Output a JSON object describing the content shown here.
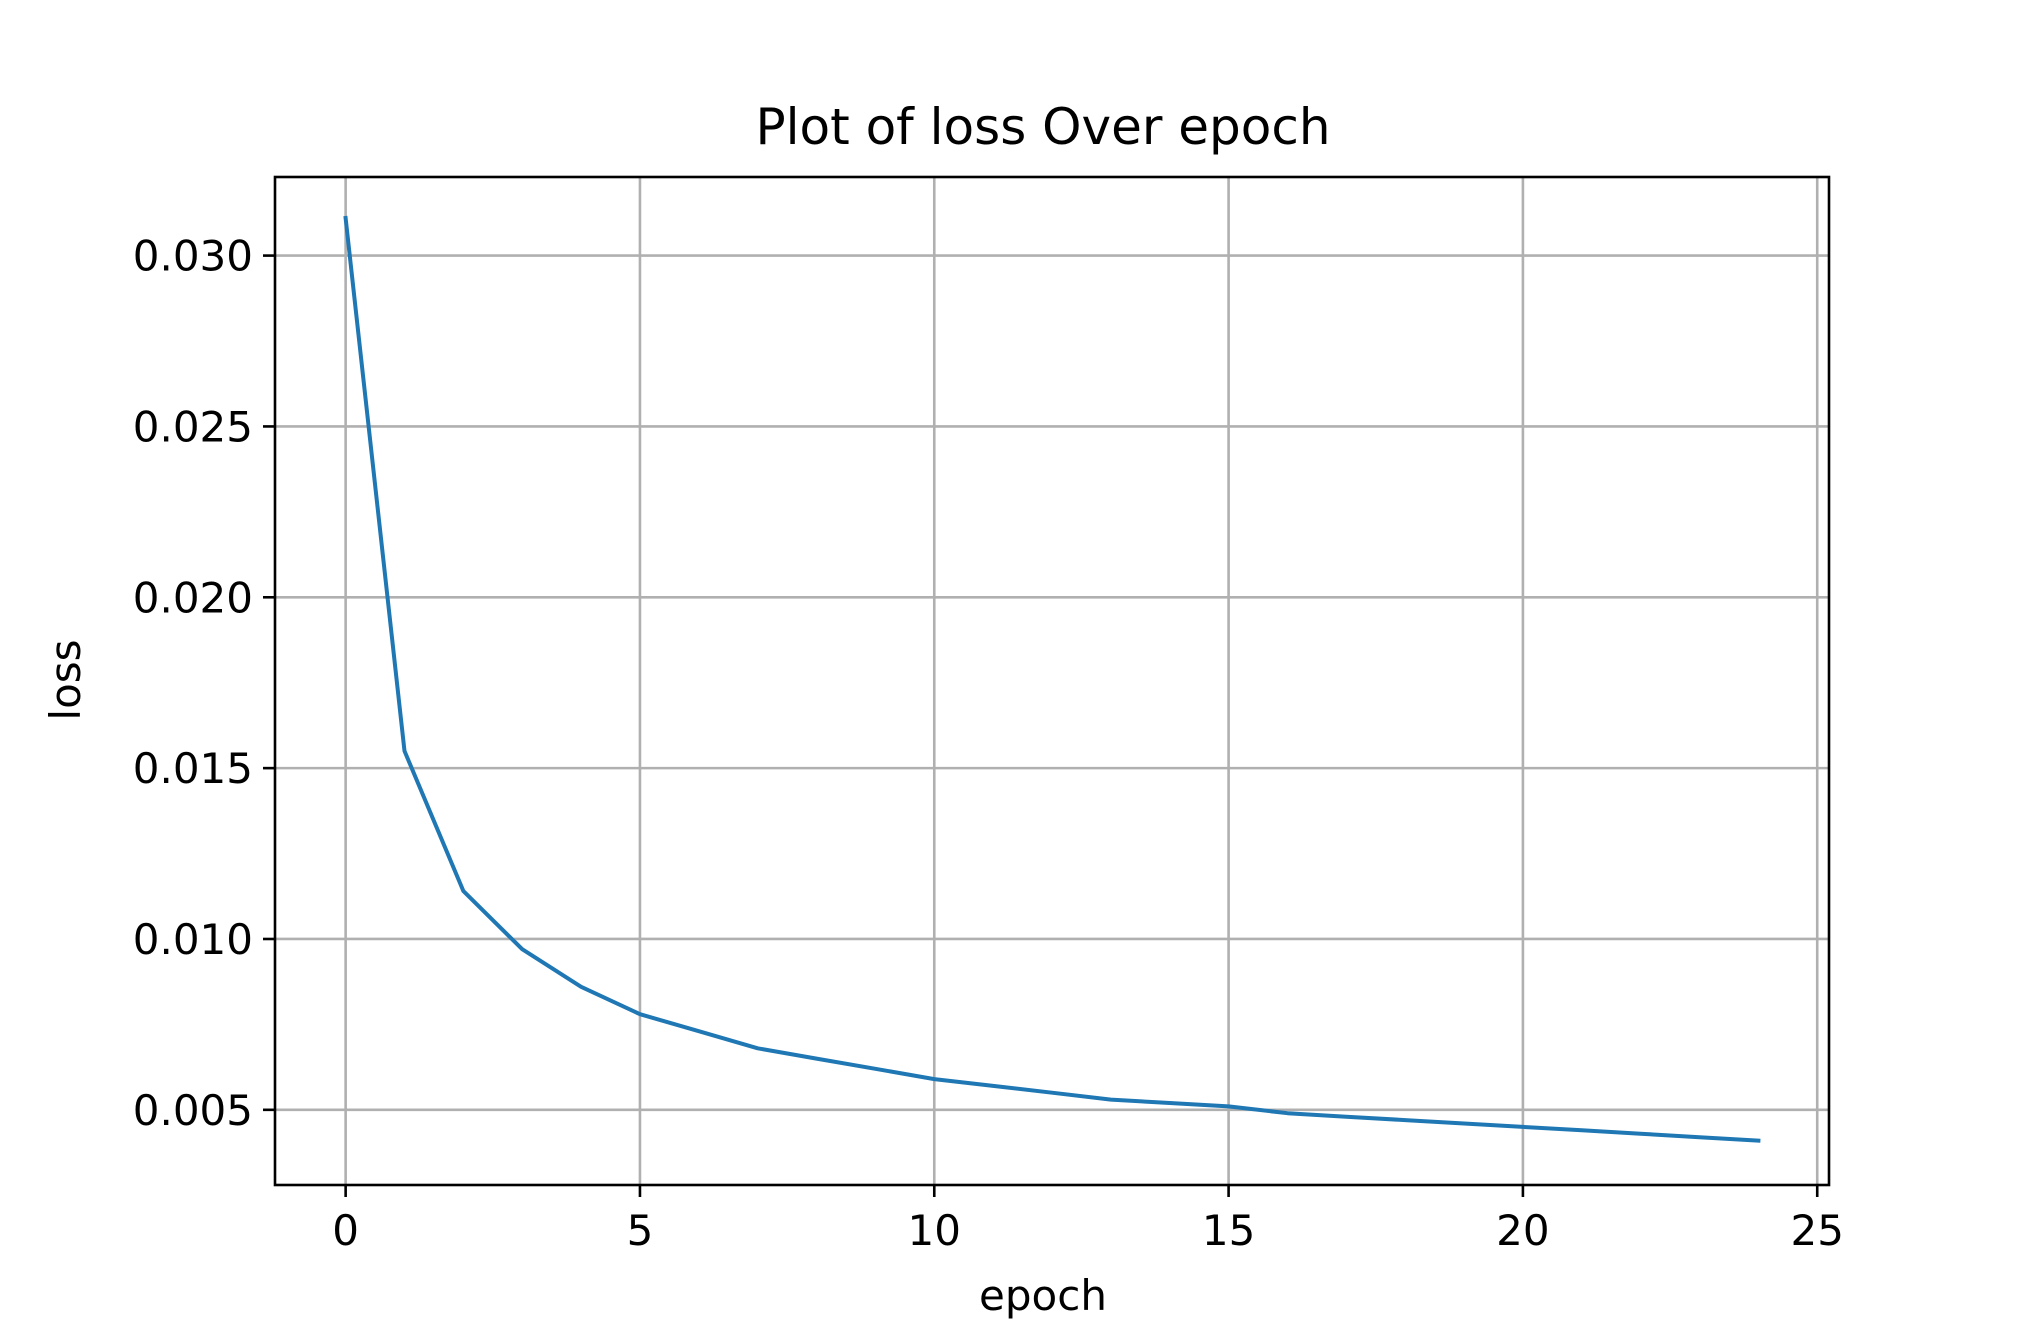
{
  "chart_data": {
    "type": "line",
    "title": "Plot of loss Over epoch",
    "xlabel": "epoch",
    "ylabel": "loss",
    "xlim": [
      -1.2,
      25.2
    ],
    "ylim": [
      0.0028,
      0.0323
    ],
    "xticks": [
      0,
      5,
      10,
      15,
      20,
      25
    ],
    "xtick_labels": [
      "0",
      "5",
      "10",
      "15",
      "20",
      "25"
    ],
    "yticks": [
      0.005,
      0.01,
      0.015,
      0.02,
      0.025,
      0.03
    ],
    "ytick_labels": [
      "0.005",
      "0.010",
      "0.015",
      "0.020",
      "0.025",
      "0.030"
    ],
    "grid": true,
    "series": [
      {
        "color": "#1f77b4",
        "x": [
          0,
          1,
          2,
          3,
          4,
          5,
          6,
          7,
          8,
          9,
          10,
          11,
          12,
          13,
          14,
          15,
          16,
          17,
          18,
          19,
          20,
          21,
          22,
          23,
          24
        ],
        "y": [
          0.0311,
          0.0155,
          0.0114,
          0.0097,
          0.0086,
          0.0078,
          0.0073,
          0.0068,
          0.0065,
          0.0062,
          0.0059,
          0.0057,
          0.0055,
          0.0053,
          0.0052,
          0.0051,
          0.0049,
          0.0048,
          0.0047,
          0.0046,
          0.0045,
          0.0044,
          0.0043,
          0.0042,
          0.0041
        ]
      }
    ]
  }
}
